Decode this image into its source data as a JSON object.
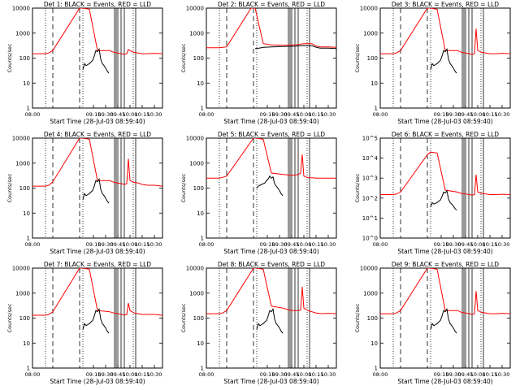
{
  "chart_data": [
    {
      "type": "line",
      "title": "Det 1: BLACK = Events, RED = LLD",
      "xlabel": "Start Time (28-Jul-03 08:59:40)",
      "ylabel": "Counts/sec",
      "xlim": [
        "08:00",
        "10:40"
      ],
      "ylim": [
        1,
        10000
      ],
      "yscale": "log",
      "xticks": [
        "08:00",
        "09:15",
        "09:30",
        "09:45",
        "10:00",
        "10:15",
        "10:30"
      ],
      "xtick_minutes": [
        0,
        75,
        90,
        105,
        120,
        135,
        150
      ],
      "yticks": [
        "1",
        "10",
        "100",
        "1000",
        "10000"
      ],
      "series": [
        {
          "color": "#ff0000",
          "x_minutes": [
            0,
            16,
            20,
            25,
            58,
            62,
            70,
            80,
            95,
            100,
            105,
            110,
            113,
            116,
            118,
            120,
            125,
            130,
            135,
            142,
            150,
            160
          ],
          "y": [
            150,
            150,
            160,
            200,
            10000,
            10000,
            9000,
            200,
            200,
            170,
            160,
            150,
            140,
            150,
            220,
            200,
            170,
            160,
            150,
            150,
            155,
            150
          ]
        },
        {
          "color": "#000000",
          "x_minutes": [
            62,
            64,
            66,
            68,
            70,
            72,
            74,
            76,
            78,
            80,
            82,
            84,
            86,
            88,
            90,
            92,
            94
          ],
          "y": [
            35,
            60,
            50,
            55,
            60,
            70,
            80,
            120,
            200,
            180,
            230,
            90,
            60,
            50,
            40,
            30,
            25
          ]
        }
      ]
    },
    {
      "type": "line",
      "title": "Det 2: BLACK = Events, RED = LLD",
      "xlabel": "Start Time (28-Jul-03 08:59:40)",
      "ylabel": "Counts/sec",
      "xlim": [
        "08:00",
        "10:40"
      ],
      "ylim": [
        1,
        10000
      ],
      "yscale": "log",
      "xticks": [
        "08:00",
        "09:15",
        "09:30",
        "09:45",
        "10:00",
        "10:15",
        "10:30"
      ],
      "xtick_minutes": [
        0,
        75,
        90,
        105,
        120,
        135,
        150
      ],
      "yticks": [
        "1",
        "10",
        "100",
        "1000",
        "10000"
      ],
      "series": [
        {
          "color": "#ff0000",
          "x_minutes": [
            0,
            16,
            20,
            25,
            55,
            60,
            70,
            80,
            95,
            110,
            120,
            130,
            135,
            140,
            150,
            160
          ],
          "y": [
            260,
            260,
            270,
            280,
            10000,
            10000,
            380,
            340,
            330,
            340,
            380,
            380,
            300,
            280,
            280,
            270
          ]
        },
        {
          "color": "#000000",
          "x_minutes": [
            60,
            65,
            70,
            80,
            95,
            110,
            120,
            130,
            135,
            140,
            150,
            160
          ],
          "y": [
            240,
            250,
            270,
            280,
            290,
            300,
            320,
            310,
            270,
            250,
            250,
            240
          ]
        }
      ]
    },
    {
      "type": "line",
      "title": "Det 3: BLACK = Events, RED = LLD",
      "xlabel": "Start Time (28-Jul-03 08:59:40)",
      "ylabel": "Counts/sec",
      "xlim": [
        "08:00",
        "10:40"
      ],
      "ylim": [
        1,
        10000
      ],
      "yscale": "log",
      "xticks": [
        "08:00",
        "09:15",
        "09:30",
        "09:45",
        "10:00",
        "10:15",
        "10:30"
      ],
      "xtick_minutes": [
        0,
        75,
        90,
        105,
        120,
        135,
        150
      ],
      "yticks": [
        "1",
        "10",
        "100",
        "1000",
        "10000"
      ],
      "series": [
        {
          "color": "#ff0000",
          "x_minutes": [
            0,
            16,
            20,
            25,
            58,
            62,
            70,
            80,
            95,
            100,
            105,
            110,
            113,
            116,
            118,
            120,
            125,
            130,
            135,
            142,
            150,
            160
          ],
          "y": [
            150,
            150,
            160,
            200,
            10000,
            10000,
            9000,
            200,
            200,
            170,
            160,
            150,
            140,
            150,
            1500,
            200,
            170,
            160,
            150,
            150,
            155,
            150
          ]
        },
        {
          "color": "#000000",
          "x_minutes": [
            62,
            64,
            66,
            68,
            70,
            72,
            74,
            76,
            78,
            80,
            82,
            84,
            86,
            88,
            90,
            92,
            94
          ],
          "y": [
            35,
            60,
            50,
            55,
            60,
            70,
            80,
            120,
            200,
            180,
            230,
            90,
            60,
            50,
            40,
            30,
            25
          ]
        }
      ]
    },
    {
      "type": "line",
      "title": "Det 4: BLACK = Events, RED = LLD",
      "xlabel": "Start Time (28-Jul-03 08:59:40)",
      "ylabel": "Counts/sec",
      "xlim": [
        "08:00",
        "10:40"
      ],
      "ylim": [
        1,
        10000
      ],
      "yscale": "log",
      "xticks": [
        "08:00",
        "09:15",
        "09:30",
        "09:45",
        "10:00",
        "10:15",
        "10:30"
      ],
      "xtick_minutes": [
        0,
        75,
        90,
        105,
        120,
        135,
        150
      ],
      "yticks": [
        "1",
        "10",
        "100",
        "1000",
        "10000"
      ],
      "series": [
        {
          "color": "#ff0000",
          "x_minutes": [
            0,
            16,
            20,
            25,
            58,
            62,
            70,
            80,
            95,
            100,
            105,
            110,
            113,
            116,
            118,
            120,
            125,
            130,
            135,
            142,
            150,
            160
          ],
          "y": [
            120,
            120,
            130,
            180,
            10000,
            10000,
            9000,
            200,
            200,
            170,
            160,
            150,
            140,
            150,
            1500,
            200,
            170,
            160,
            140,
            130,
            130,
            120
          ]
        },
        {
          "color": "#000000",
          "x_minutes": [
            62,
            64,
            66,
            68,
            70,
            72,
            74,
            76,
            78,
            80,
            82,
            84,
            86,
            88,
            90,
            92,
            94
          ],
          "y": [
            35,
            60,
            50,
            55,
            60,
            70,
            80,
            120,
            200,
            180,
            230,
            90,
            60,
            50,
            40,
            30,
            25
          ]
        }
      ]
    },
    {
      "type": "line",
      "title": "Det 5: BLACK = Events, RED = LLD",
      "xlabel": "Start Time (28-Jul-03 08:59:40)",
      "ylabel": "Counts/sec",
      "xlim": [
        "08:00",
        "10:40"
      ],
      "ylim": [
        1,
        10000
      ],
      "yscale": "log",
      "xticks": [
        "08:00",
        "09:15",
        "09:30",
        "09:45",
        "10:00",
        "10:15",
        "10:30"
      ],
      "xtick_minutes": [
        0,
        75,
        90,
        105,
        120,
        135,
        150
      ],
      "yticks": [
        "1",
        "10",
        "100",
        "1000",
        "10000"
      ],
      "series": [
        {
          "color": "#ff0000",
          "x_minutes": [
            0,
            16,
            20,
            25,
            58,
            62,
            70,
            80,
            95,
            100,
            105,
            110,
            113,
            116,
            118,
            120,
            125,
            130,
            135,
            142,
            150,
            160
          ],
          "y": [
            250,
            250,
            270,
            300,
            10000,
            10000,
            9000,
            400,
            350,
            340,
            330,
            340,
            350,
            400,
            2200,
            300,
            260,
            260,
            250,
            250,
            250,
            250
          ]
        },
        {
          "color": "#000000",
          "x_minutes": [
            62,
            64,
            66,
            68,
            70,
            72,
            74,
            76,
            78,
            80,
            82,
            84,
            86,
            88,
            90,
            92,
            94
          ],
          "y": [
            100,
            120,
            130,
            140,
            150,
            160,
            200,
            230,
            300,
            250,
            280,
            150,
            120,
            100,
            80,
            60,
            50
          ]
        }
      ]
    },
    {
      "type": "line",
      "title": "Det 6: BLACK = Events, RED = LLD",
      "xlabel": "Start Time (28-Jul-03 08:59:40)",
      "ylabel": "Counts/sec",
      "xlim": [
        "08:00",
        "10:40"
      ],
      "ylim": [
        1,
        100000
      ],
      "yscale": "log",
      "xticks": [
        "08:00",
        "09:15",
        "09:30",
        "09:45",
        "10:00",
        "10:15",
        "10:30"
      ],
      "xtick_minutes": [
        0,
        75,
        90,
        105,
        120,
        135,
        150
      ],
      "yticks": [
        "10^0",
        "10^1",
        "10^2",
        "10^3",
        "10^4",
        "10^5"
      ],
      "series": [
        {
          "color": "#ff0000",
          "x_minutes": [
            0,
            16,
            20,
            25,
            58,
            62,
            70,
            80,
            95,
            100,
            105,
            110,
            113,
            116,
            118,
            120,
            125,
            130,
            135,
            142,
            150,
            160
          ],
          "y": [
            150,
            150,
            160,
            200,
            15000,
            20000,
            18000,
            250,
            200,
            170,
            160,
            150,
            140,
            150,
            1500,
            200,
            170,
            160,
            150,
            150,
            155,
            150
          ]
        },
        {
          "color": "#000000",
          "x_minutes": [
            62,
            64,
            66,
            68,
            70,
            72,
            74,
            76,
            78,
            80,
            82,
            84,
            86,
            88,
            90,
            92,
            94
          ],
          "y": [
            35,
            60,
            50,
            55,
            60,
            70,
            80,
            120,
            200,
            180,
            230,
            90,
            60,
            50,
            40,
            30,
            25
          ]
        }
      ]
    },
    {
      "type": "line",
      "title": "Det 7: BLACK = Events, RED = LLD",
      "xlabel": "Start Time (28-Jul-03 08:59:40)",
      "ylabel": "Counts/sec",
      "xlim": [
        "08:00",
        "10:40"
      ],
      "ylim": [
        1,
        10000
      ],
      "yscale": "log",
      "xticks": [
        "08:00",
        "09:15",
        "09:30",
        "09:45",
        "10:00",
        "10:15",
        "10:30"
      ],
      "xtick_minutes": [
        0,
        75,
        90,
        105,
        120,
        135,
        150
      ],
      "yticks": [
        "1",
        "10",
        "100",
        "1000",
        "10000"
      ],
      "series": [
        {
          "color": "#ff0000",
          "x_minutes": [
            0,
            16,
            20,
            25,
            58,
            62,
            70,
            80,
            95,
            100,
            105,
            110,
            113,
            116,
            118,
            120,
            125,
            130,
            135,
            142,
            150,
            160
          ],
          "y": [
            130,
            130,
            140,
            180,
            10000,
            10000,
            9000,
            200,
            180,
            160,
            150,
            140,
            130,
            140,
            400,
            200,
            160,
            150,
            140,
            140,
            140,
            130
          ]
        },
        {
          "color": "#000000",
          "x_minutes": [
            62,
            64,
            66,
            68,
            70,
            72,
            74,
            76,
            78,
            80,
            82,
            84,
            86,
            88,
            90,
            92,
            94
          ],
          "y": [
            35,
            60,
            50,
            55,
            60,
            70,
            80,
            120,
            200,
            180,
            230,
            90,
            60,
            50,
            40,
            30,
            25
          ]
        }
      ]
    },
    {
      "type": "line",
      "title": "Det 8: BLACK = Events, RED = LLD",
      "xlabel": "Start Time (28-Jul-03 08:59:40)",
      "ylabel": "Counts/sec",
      "xlim": [
        "08:00",
        "10:40"
      ],
      "ylim": [
        1,
        10000
      ],
      "yscale": "log",
      "xticks": [
        "08:00",
        "09:15",
        "09:30",
        "09:45",
        "10:00",
        "10:15",
        "10:30"
      ],
      "xtick_minutes": [
        0,
        75,
        90,
        105,
        120,
        135,
        150
      ],
      "yticks": [
        "1",
        "10",
        "100",
        "1000",
        "10000"
      ],
      "series": [
        {
          "color": "#ff0000",
          "x_minutes": [
            0,
            16,
            20,
            25,
            58,
            62,
            70,
            80,
            95,
            100,
            105,
            110,
            113,
            116,
            118,
            120,
            125,
            130,
            135,
            142,
            150,
            160
          ],
          "y": [
            150,
            150,
            160,
            200,
            10000,
            10000,
            9000,
            300,
            250,
            220,
            200,
            200,
            200,
            210,
            1800,
            250,
            200,
            180,
            160,
            150,
            155,
            150
          ]
        },
        {
          "color": "#000000",
          "x_minutes": [
            62,
            64,
            66,
            68,
            70,
            72,
            74,
            76,
            78,
            80,
            82,
            84,
            86,
            88,
            90,
            92,
            94
          ],
          "y": [
            35,
            60,
            50,
            55,
            60,
            70,
            80,
            120,
            200,
            180,
            230,
            90,
            60,
            50,
            40,
            30,
            25
          ]
        }
      ]
    },
    {
      "type": "line",
      "title": "Det 9: BLACK = Events, RED = LLD",
      "xlabel": "Start Time (28-Jul-03 08:59:40)",
      "ylabel": "Counts/sec",
      "xlim": [
        "08:00",
        "10:40"
      ],
      "ylim": [
        1,
        10000
      ],
      "yscale": "log",
      "xticks": [
        "08:00",
        "09:15",
        "09:30",
        "09:45",
        "10:00",
        "10:15",
        "10:30"
      ],
      "xtick_minutes": [
        0,
        75,
        90,
        105,
        120,
        135,
        150
      ],
      "yticks": [
        "1",
        "10",
        "100",
        "1000",
        "10000"
      ],
      "series": [
        {
          "color": "#ff0000",
          "x_minutes": [
            0,
            16,
            20,
            25,
            58,
            62,
            70,
            80,
            95,
            100,
            105,
            110,
            113,
            116,
            118,
            120,
            125,
            130,
            135,
            142,
            150,
            160
          ],
          "y": [
            150,
            150,
            160,
            200,
            10000,
            10000,
            9000,
            200,
            200,
            170,
            160,
            150,
            140,
            150,
            1200,
            200,
            170,
            160,
            150,
            150,
            155,
            150
          ]
        },
        {
          "color": "#000000",
          "x_minutes": [
            62,
            64,
            66,
            68,
            70,
            72,
            74,
            76,
            78,
            80,
            82,
            84,
            86,
            88,
            90,
            92,
            94
          ],
          "y": [
            35,
            60,
            50,
            55,
            60,
            70,
            80,
            120,
            200,
            180,
            230,
            90,
            60,
            50,
            40,
            30,
            25
          ]
        }
      ]
    }
  ]
}
